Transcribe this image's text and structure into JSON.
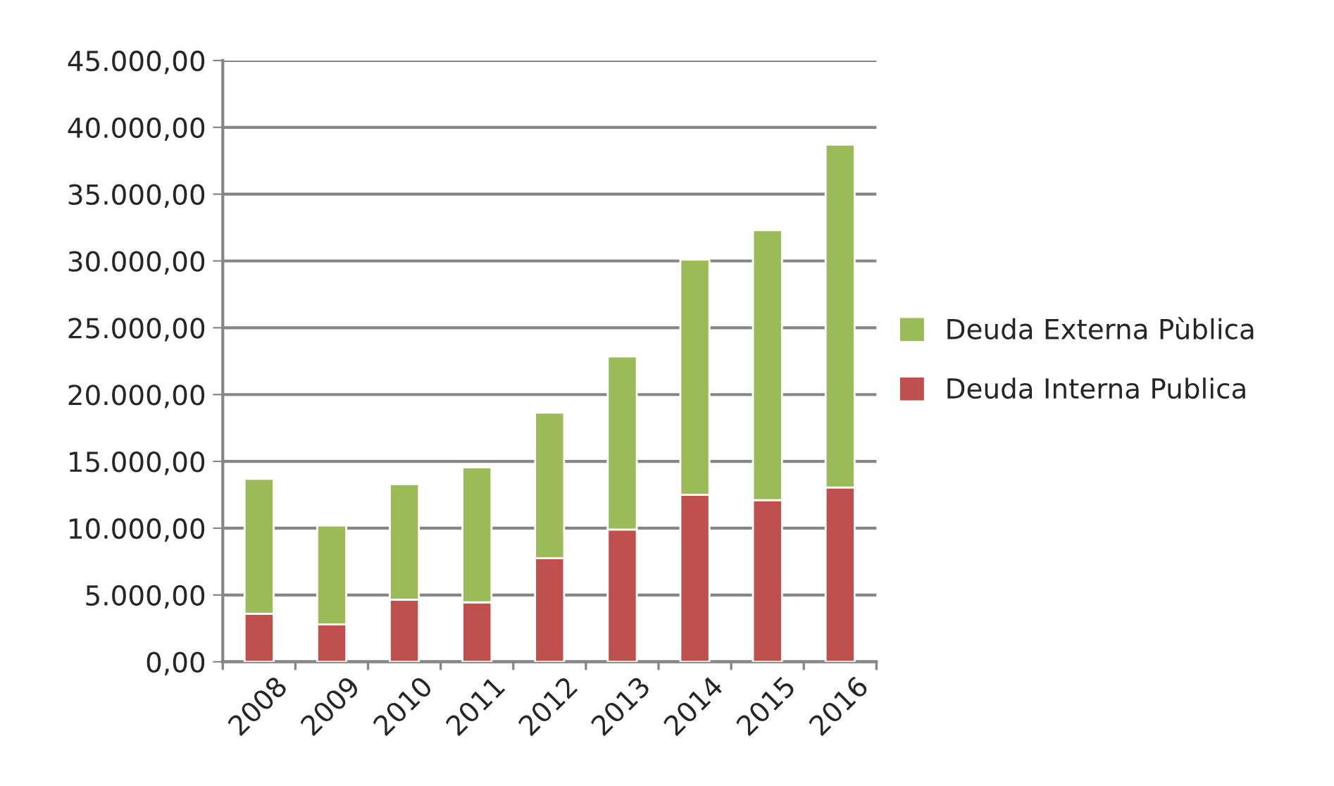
{
  "chart_data": {
    "type": "bar",
    "stacked": true,
    "categories": [
      "2008",
      "2009",
      "2010",
      "2011",
      "2012",
      "2013",
      "2014",
      "2015",
      "2016"
    ],
    "series": [
      {
        "name": "Deuda Interna Publica",
        "color": "#c0504d",
        "values": [
          3600,
          2800,
          4650,
          4450,
          7750,
          9900,
          12500,
          12100,
          13050
        ]
      },
      {
        "name": "Deuda Externa Pùblica",
        "color": "#9bbb59",
        "values": [
          10100,
          7400,
          8650,
          10100,
          10900,
          12950,
          17600,
          20200,
          25650
        ]
      }
    ],
    "ylim": [
      0,
      45000
    ],
    "yticks": [
      {
        "value": 0,
        "label": "0,00"
      },
      {
        "value": 5000,
        "label": "5.000,00"
      },
      {
        "value": 10000,
        "label": "10.000,00"
      },
      {
        "value": 15000,
        "label": "15.000,00"
      },
      {
        "value": 20000,
        "label": "20.000,00"
      },
      {
        "value": 25000,
        "label": "25.000,00"
      },
      {
        "value": 30000,
        "label": "30.000,00"
      },
      {
        "value": 35000,
        "label": "35.000,00"
      },
      {
        "value": 40000,
        "label": "40.000,00"
      },
      {
        "value": 45000,
        "label": "45.000,00"
      }
    ],
    "grid": "y",
    "legend": "right"
  }
}
